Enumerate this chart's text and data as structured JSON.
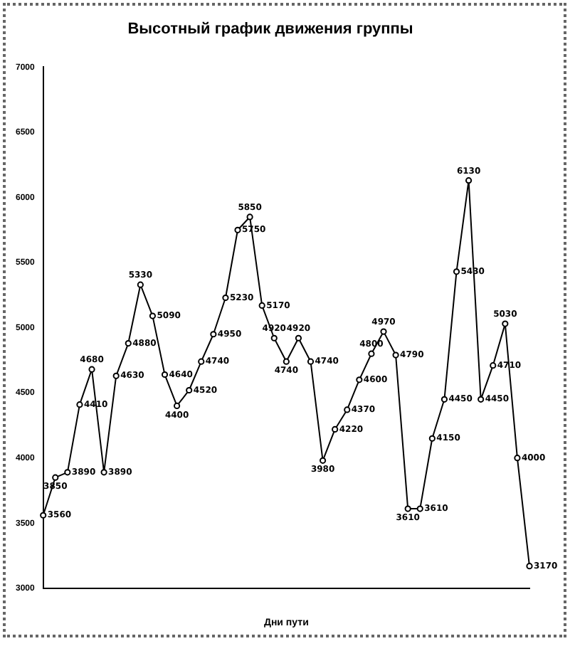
{
  "chart_data": {
    "type": "line",
    "title": "Высотный график движения группы",
    "xlabel": "Дни пути",
    "categories": [
      null,
      null,
      null,
      null,
      null,
      null,
      null,
      null,
      null,
      null,
      null,
      null,
      null,
      null,
      null,
      null,
      null,
      null,
      null,
      null,
      null,
      null,
      null,
      null,
      null,
      null,
      null,
      null,
      null,
      null,
      null,
      null,
      null,
      null,
      null,
      null,
      null,
      null,
      null,
      null,
      null
    ],
    "series": [
      {
        "color": "#000000",
        "values": [
          3560,
          3850,
          3890,
          4410,
          4680,
          3890,
          4630,
          4880,
          5330,
          5090,
          4640,
          4400,
          4520,
          4740,
          4950,
          5230,
          5750,
          5850,
          5170,
          4920,
          4740,
          4920,
          4740,
          3980,
          4220,
          4370,
          4600,
          4800,
          4970,
          4790,
          3610,
          3610,
          4150,
          4450,
          5430,
          6130,
          4450,
          4710,
          5030,
          4000,
          3170
        ]
      }
    ],
    "ylim": [
      3000,
      7000
    ],
    "yticks": [
      3000,
      3500,
      4000,
      4500,
      5000,
      5500,
      6000,
      6500,
      7000
    ],
    "grid": false,
    "legend": false,
    "marker": "circle",
    "line_style": "solid",
    "data_labels": true
  }
}
